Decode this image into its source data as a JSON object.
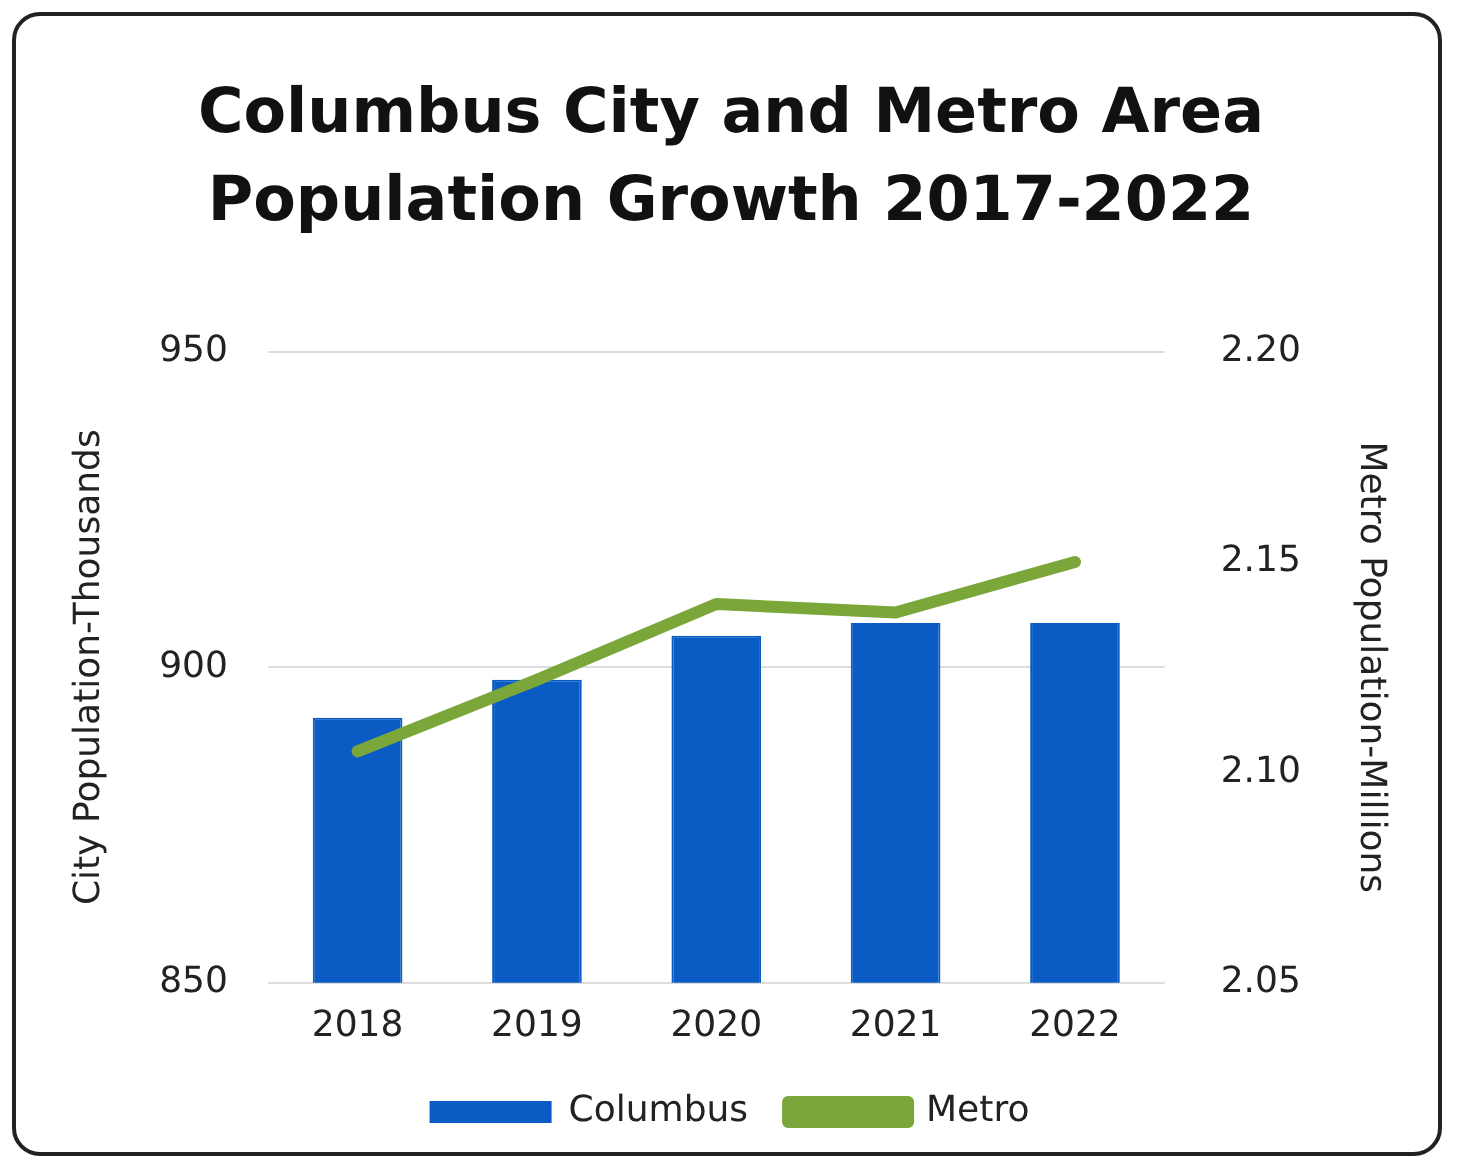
{
  "chart_data": {
    "type": "bar",
    "title": "Columbus City and Metro Area Population Growth 2017-2022",
    "ylabel": "City Population-Thousands",
    "y2label": "Metro Population-Millions",
    "categories": [
      "2018",
      "2019",
      "2020",
      "2021",
      "2022"
    ],
    "series": [
      {
        "name": "Columbus",
        "color": "#0a5cc4",
        "values": [
          892,
          898,
          905,
          907,
          907
        ]
      },
      {
        "name": "Metro",
        "type": "line",
        "axis": "y2",
        "color": "#7aa63a",
        "values": [
          2.105,
          2.122,
          2.14,
          2.138,
          2.15
        ]
      }
    ],
    "ylim": [
      850,
      950
    ],
    "yticks": [
      850,
      900,
      950
    ],
    "y2lim": [
      2.05,
      2.2
    ],
    "y2ticks": [
      {
        "value": 2.05,
        "label": "2.05"
      },
      {
        "value": 2.1,
        "label": "2.10"
      },
      {
        "value": 2.15,
        "label": "2.15"
      },
      {
        "value": 2.2,
        "label": "2.20"
      }
    ],
    "grid": "y",
    "legend": "bottom",
    "marker": "none"
  }
}
